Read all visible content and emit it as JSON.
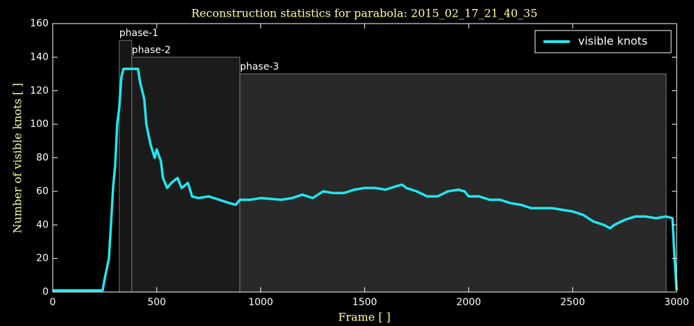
{
  "chart_data": {
    "type": "line",
    "title": "Reconstruction statistics for parabola: 2015_02_17_21_40_35",
    "xlabel": "Frame [ ]",
    "ylabel": "Number of visible knots [ ]",
    "xlim": [
      0,
      3000
    ],
    "ylim": [
      0,
      160
    ],
    "xticks": [
      0,
      500,
      1000,
      1500,
      2000,
      2500,
      3000
    ],
    "yticks": [
      0,
      20,
      40,
      60,
      80,
      100,
      120,
      140,
      160
    ],
    "legend": "upper right",
    "phases": [
      {
        "label": "phase-1",
        "start": 320,
        "end": 380,
        "height": 150
      },
      {
        "label": "phase-2",
        "start": 380,
        "end": 900,
        "height": 140
      },
      {
        "label": "phase-3",
        "start": 900,
        "end": 2950,
        "height": 130
      }
    ],
    "x": [
      0,
      240,
      250,
      270,
      280,
      290,
      300,
      310,
      320,
      330,
      340,
      360,
      390,
      410,
      420,
      440,
      450,
      470,
      490,
      500,
      520,
      530,
      550,
      570,
      600,
      620,
      650,
      670,
      700,
      750,
      800,
      850,
      880,
      900,
      950,
      1000,
      1100,
      1150,
      1200,
      1250,
      1300,
      1350,
      1400,
      1450,
      1500,
      1550,
      1600,
      1650,
      1680,
      1700,
      1750,
      1800,
      1850,
      1900,
      1950,
      1980,
      2000,
      2050,
      2100,
      2150,
      2200,
      2250,
      2300,
      2400,
      2450,
      2500,
      2550,
      2600,
      2650,
      2680,
      2700,
      2750,
      2800,
      2850,
      2900,
      2950,
      2980,
      2990,
      3000
    ],
    "series": [
      {
        "name": "visible knots",
        "color": "#1ee8f0",
        "values": [
          1,
          1,
          8,
          20,
          40,
          62,
          75,
          100,
          110,
          128,
          133,
          133,
          133,
          133,
          125,
          115,
          100,
          88,
          80,
          85,
          78,
          68,
          62,
          65,
          68,
          62,
          65,
          57,
          56,
          57,
          55,
          53,
          52,
          55,
          55,
          56,
          55,
          56,
          58,
          56,
          60,
          59,
          59,
          61,
          62,
          62,
          61,
          63,
          64,
          62,
          60,
          57,
          57,
          60,
          61,
          60,
          57,
          57,
          55,
          55,
          53,
          52,
          50,
          50,
          49,
          48,
          46,
          42,
          40,
          38,
          40,
          43,
          45,
          45,
          44,
          45,
          44,
          20,
          1
        ]
      }
    ]
  }
}
